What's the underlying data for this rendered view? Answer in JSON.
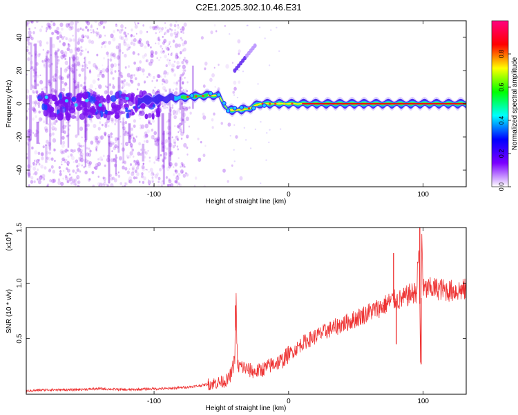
{
  "figure_title": "C2E1.2025.302.10.46.E31",
  "chart_data": [
    {
      "type": "heatmap",
      "title": "C2E1.2025.302.10.46.E31",
      "xlabel": "Height of straight line (km)",
      "ylabel": "Frequency (Hz)",
      "xlim": [
        -195,
        132
      ],
      "ylim": [
        -50,
        50
      ],
      "xticks": [
        -100,
        0,
        100
      ],
      "yticks": [
        -40,
        -20,
        0,
        20,
        40
      ],
      "grid": false,
      "colorbar": {
        "label": "Normalized spectral amplitude",
        "range": [
          0,
          1
        ],
        "ticks": [
          0.0,
          0.2,
          0.4,
          0.6,
          0.8
        ],
        "tick_labels": [
          "0.0",
          "0.2",
          "0.4",
          "0.6",
          "0.8"
        ],
        "colors": [
          "#ffffff",
          "#7b00ff",
          "#0000ff",
          "#00ffff",
          "#00ff00",
          "#ffff00",
          "#ff0000",
          "#ff0080"
        ]
      },
      "features": [
        {
          "name": "dominant spectral ridge",
          "x_range": [
            -110,
            132
          ],
          "frequency_hz": [
            2,
            6,
            5,
            -4,
            0,
            0
          ],
          "note": "ridge near 0 Hz, strongest (red) beyond 0 km"
        },
        {
          "name": "diagonal branch",
          "x_range": [
            -40,
            -25
          ],
          "frequency_hz": [
            20,
            35
          ]
        },
        {
          "name": "broadband noise",
          "x_range": [
            -195,
            -70
          ],
          "frequency_hz": [
            -50,
            50
          ],
          "amplitude": 0.1
        }
      ]
    },
    {
      "type": "line",
      "xlabel": "Height of straight line (km)",
      "ylabel": "SNR (10 * v/v)",
      "scale_label": "(x10",
      "scale_exponent": "4",
      "xlim": [
        -195,
        132
      ],
      "ylim": [
        0,
        1.5
      ],
      "xticks": [
        -100,
        0,
        100
      ],
      "yticks": [
        0.5,
        1.0,
        1.5
      ],
      "ytick_labels": [
        "0.5",
        "1.0",
        "1.5"
      ],
      "grid": false,
      "series": [
        {
          "name": "SNR",
          "color": "#ee3333",
          "x": [
            -195,
            -180,
            -160,
            -140,
            -120,
            -100,
            -90,
            -80,
            -70,
            -60,
            -50,
            -45,
            -42,
            -40,
            -39,
            -38,
            -35,
            -30,
            -25,
            -20,
            -15,
            -10,
            -5,
            0,
            5,
            10,
            20,
            30,
            40,
            50,
            60,
            70,
            75,
            78,
            80,
            85,
            90,
            95,
            97,
            98,
            99,
            100,
            105,
            110,
            120,
            132
          ],
          "values": [
            0.03,
            0.04,
            0.04,
            0.05,
            0.04,
            0.05,
            0.05,
            0.06,
            0.07,
            0.09,
            0.11,
            0.13,
            0.2,
            0.35,
            0.8,
            0.25,
            0.25,
            0.22,
            0.2,
            0.22,
            0.25,
            0.28,
            0.3,
            0.36,
            0.4,
            0.46,
            0.52,
            0.58,
            0.63,
            0.68,
            0.74,
            0.79,
            0.83,
            0.85,
            0.84,
            0.86,
            0.9,
            0.92,
            1.35,
            0.28,
            1.45,
            0.94,
            0.95,
            0.95,
            0.93,
            0.94
          ],
          "spikes": [
            {
              "x": -39.5,
              "value": 0.8
            },
            {
              "x": 78,
              "value": 1.27
            },
            {
              "x": 80,
              "value": 0.45
            },
            {
              "x": 97.5,
              "value": 1.5
            },
            {
              "x": 98.5,
              "value": 0.27
            }
          ]
        }
      ]
    }
  ]
}
